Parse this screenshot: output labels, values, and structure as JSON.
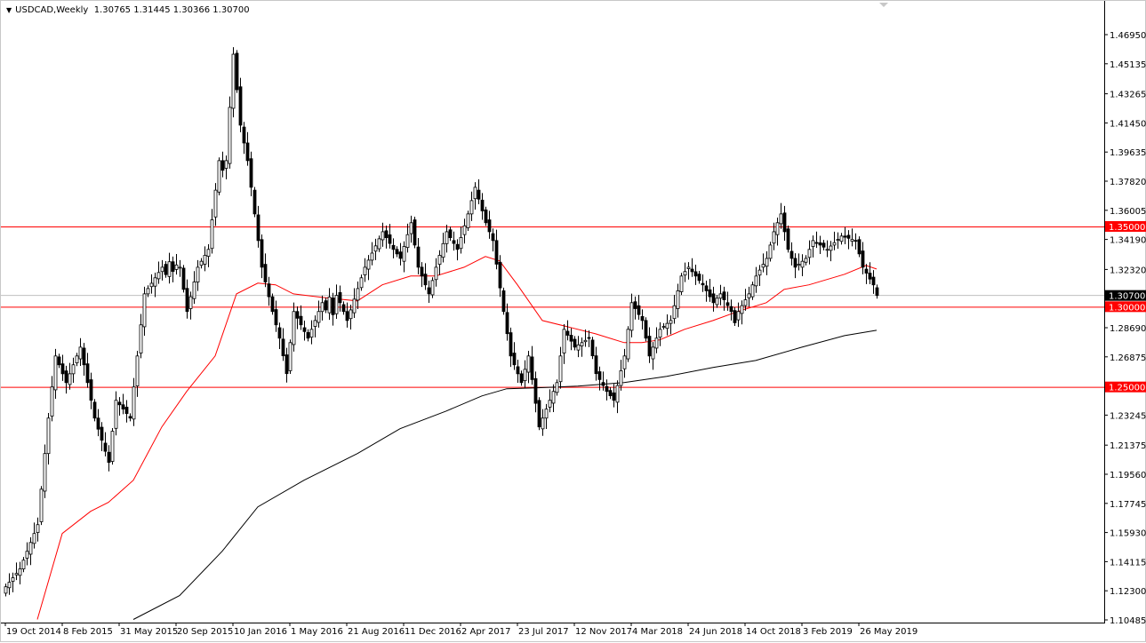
{
  "header": {
    "symbol_timeframe": "USDCAD,Weekly",
    "ohlc": "1.30765 1.31445 1.30366 1.30700",
    "menu_icon": "triangle-down-icon"
  },
  "chart_data": {
    "type": "candlestick",
    "title": "USDCAD,Weekly",
    "symbol": "USDCAD",
    "timeframe": "Weekly",
    "first_week": "2014-10-19",
    "ylim": [
      1.10485,
      1.4695
    ],
    "grid": false,
    "colors": {
      "bull_body": "#ffffff",
      "bear_body": "#000000",
      "candle_outline": "#000000",
      "ma_fast": "#ff0000",
      "ma_slow": "#000000",
      "level_line": "#ff0000",
      "current_price_line": "#c0c0c0",
      "level_tag": "#ff0000",
      "current_tag": "#000000"
    },
    "y_ticks": [
      "1.46950",
      "1.45135",
      "1.43265",
      "1.41450",
      "1.39635",
      "1.37820",
      "1.36005",
      "1.34190",
      "1.32320",
      "1.28690",
      "1.26875",
      "1.23245",
      "1.21375",
      "1.19560",
      "1.17745",
      "1.15930",
      "1.14115",
      "1.12300",
      "1.10485"
    ],
    "x_ticks": [
      {
        "date": "2014-10-19",
        "label": "19 Oct 2014"
      },
      {
        "date": "2015-02-08",
        "label": "8 Feb 2015"
      },
      {
        "date": "2015-05-31",
        "label": "31 May 2015"
      },
      {
        "date": "2015-09-20",
        "label": "20 Sep 2015"
      },
      {
        "date": "2016-01-10",
        "label": "10 Jan 2016"
      },
      {
        "date": "2016-05-01",
        "label": "1 May 2016"
      },
      {
        "date": "2016-08-21",
        "label": "21 Aug 2016"
      },
      {
        "date": "2016-12-11",
        "label": "11 Dec 2016"
      },
      {
        "date": "2017-04-02",
        "label": "2 Apr 2017"
      },
      {
        "date": "2017-07-23",
        "label": "23 Jul 2017"
      },
      {
        "date": "2017-11-12",
        "label": "12 Nov 2017"
      },
      {
        "date": "2018-03-04",
        "label": "4 Mar 2018"
      },
      {
        "date": "2018-06-24",
        "label": "24 Jun 2018"
      },
      {
        "date": "2018-10-14",
        "label": "14 Oct 2018"
      },
      {
        "date": "2019-02-03",
        "label": "3 Feb 2019"
      },
      {
        "date": "2019-05-26",
        "label": "26 May 2019"
      }
    ],
    "levels": [
      {
        "price": 1.35,
        "label": "1.35000"
      },
      {
        "price": 1.3,
        "label": "1.30000"
      },
      {
        "price": 1.25,
        "label": "1.25000"
      }
    ],
    "current_price": {
      "price": 1.307,
      "label": "1.30700"
    },
    "weekly_close": [
      1.1255,
      1.1283,
      1.1311,
      1.1338,
      1.1366,
      1.1421,
      1.1476,
      1.1531,
      1.1587,
      1.1642,
      1.1863,
      1.2085,
      1.2306,
      1.25,
      1.2693,
      1.2638,
      1.2582,
      1.2527,
      1.2582,
      1.2638,
      1.2693,
      1.2748,
      1.2638,
      1.2527,
      1.2417,
      1.2306,
      1.2237,
      1.2168,
      1.2099,
      1.203,
      1.2224,
      1.2417,
      1.2389,
      1.2362,
      1.2334,
      1.2306,
      1.25,
      1.2693,
      1.2887,
      1.308,
      1.3113,
      1.3146,
      1.318,
      1.3213,
      1.3246,
      1.32,
      1.328,
      1.322,
      1.326,
      1.3246,
      1.3108,
      1.297,
      1.3062,
      1.3154,
      1.3246,
      1.3283,
      1.332,
      1.3357,
      1.3541,
      1.3726,
      1.391,
      1.385,
      1.391,
      1.4242,
      1.4573,
      1.4352,
      1.4131,
      1.402,
      1.391,
      1.3744,
      1.3578,
      1.3412,
      1.3246,
      1.3154,
      1.3062,
      1.297,
      1.2887,
      1.2804,
      1.2694,
      1.2583,
      1.2776,
      1.297,
      1.2928,
      1.2887,
      1.2845,
      1.2804,
      1.2859,
      1.2914,
      1.297,
      1.3025,
      1.298,
      1.306,
      1.295,
      1.307,
      1.3025,
      1.297,
      1.2914,
      1.298,
      1.3047,
      1.3113,
      1.318,
      1.3246,
      1.329,
      1.3334,
      1.3379,
      1.3423,
      1.3467,
      1.343,
      1.3394,
      1.3357,
      1.3329,
      1.3301,
      1.3375,
      1.3449,
      1.3523,
      1.3384,
      1.3246,
      1.3191,
      1.3136,
      1.308,
      1.3163,
      1.3246,
      1.332,
      1.3393,
      1.3467,
      1.343,
      1.3394,
      1.3357,
      1.3431,
      1.3504,
      1.3578,
      1.3661,
      1.3744,
      1.367,
      1.3597,
      1.3523,
      1.3467,
      1.3412,
      1.3265,
      1.3117,
      1.297,
      1.2832,
      1.2693,
      1.2638,
      1.2582,
      1.2527,
      1.261,
      1.2693,
      1.2546,
      1.2398,
      1.2251,
      1.2306,
      1.2362,
      1.2417,
      1.2472,
      1.2527,
      1.2693,
      1.2859,
      1.2822,
      1.2785,
      1.2748,
      1.2762,
      1.2776,
      1.279,
      1.2804,
      1.2694,
      1.2583,
      1.2546,
      1.2509,
      1.2472,
      1.2445,
      1.2417,
      1.2509,
      1.2601,
      1.2693,
      1.2859,
      1.3025,
      1.2988,
      1.2951,
      1.2914,
      1.2804,
      1.2693,
      1.2748,
      1.2804,
      1.2859,
      1.2877,
      1.2896,
      1.2914,
      1.3006,
      1.3099,
      1.3191,
      1.3219,
      1.3246,
      1.3218,
      1.3191,
      1.3163,
      1.3136,
      1.3099,
      1.3062,
      1.3025,
      1.3053,
      1.308,
      1.3043,
      1.3007,
      1.297,
      1.29,
      1.297,
      1.3007,
      1.3043,
      1.308,
      1.3136,
      1.3191,
      1.3228,
      1.3264,
      1.3301,
      1.3384,
      1.3467,
      1.3523,
      1.3578,
      1.3467,
      1.3357,
      1.3301,
      1.3246,
      1.3264,
      1.3283,
      1.3301,
      1.3357,
      1.3412,
      1.3398,
      1.3384,
      1.3371,
      1.3357,
      1.3378,
      1.3399,
      1.3419,
      1.344,
      1.3433,
      1.3426,
      1.3419,
      1.3412,
      1.3329,
      1.3246,
      1.3209,
      1.3172,
      1.3136,
      1.307
    ],
    "moving_averages": [
      {
        "color": "#ff0000",
        "points": [
          [
            "2014-12-21",
            1.1051
          ],
          [
            "2015-02-08",
            1.1587
          ],
          [
            "2015-04-05",
            1.1725
          ],
          [
            "2015-05-10",
            1.1781
          ],
          [
            "2015-06-28",
            1.1919
          ],
          [
            "2015-08-23",
            1.2251
          ],
          [
            "2015-10-11",
            1.2472
          ],
          [
            "2015-12-06",
            1.2693
          ],
          [
            "2016-01-17",
            1.308
          ],
          [
            "2016-02-28",
            1.3147
          ],
          [
            "2016-04-03",
            1.3136
          ],
          [
            "2016-05-08",
            1.308
          ],
          [
            "2016-07-17",
            1.3053
          ],
          [
            "2016-09-11",
            1.3036
          ],
          [
            "2016-10-30",
            1.3136
          ],
          [
            "2016-12-25",
            1.3191
          ],
          [
            "2017-02-12",
            1.3191
          ],
          [
            "2017-04-09",
            1.3246
          ],
          [
            "2017-05-21",
            1.3313
          ],
          [
            "2017-06-18",
            1.3285
          ],
          [
            "2017-07-23",
            1.3136
          ],
          [
            "2017-09-10",
            1.2914
          ],
          [
            "2017-11-05",
            1.287
          ],
          [
            "2017-12-24",
            1.2831
          ],
          [
            "2018-02-18",
            1.2776
          ],
          [
            "2018-03-25",
            1.2776
          ],
          [
            "2018-04-29",
            1.2793
          ],
          [
            "2018-06-17",
            1.2859
          ],
          [
            "2018-08-12",
            1.2914
          ],
          [
            "2018-09-30",
            1.297
          ],
          [
            "2018-11-25",
            1.3025
          ],
          [
            "2018-12-30",
            1.3108
          ],
          [
            "2019-02-17",
            1.3136
          ],
          [
            "2019-04-28",
            1.3202
          ],
          [
            "2019-06-09",
            1.3257
          ],
          [
            "2019-06-30",
            1.3235
          ]
        ]
      },
      {
        "color": "#000000",
        "points": [
          [
            "2015-06-28",
            1.1051
          ],
          [
            "2015-09-27",
            1.12
          ],
          [
            "2015-12-20",
            1.1477
          ],
          [
            "2016-02-28",
            1.1753
          ],
          [
            "2016-05-29",
            1.1919
          ],
          [
            "2016-09-11",
            1.2085
          ],
          [
            "2016-12-04",
            1.224
          ],
          [
            "2017-03-05",
            1.235
          ],
          [
            "2017-05-14",
            1.2444
          ],
          [
            "2017-07-02",
            1.2489
          ],
          [
            "2017-08-27",
            1.2494
          ],
          [
            "2017-11-19",
            1.2505
          ],
          [
            "2018-02-18",
            1.2527
          ],
          [
            "2018-05-13",
            1.2566
          ],
          [
            "2018-08-12",
            1.2621
          ],
          [
            "2018-11-04",
            1.2665
          ],
          [
            "2019-02-03",
            1.2748
          ],
          [
            "2019-04-28",
            1.282
          ],
          [
            "2019-06-30",
            1.2853
          ]
        ]
      }
    ]
  }
}
